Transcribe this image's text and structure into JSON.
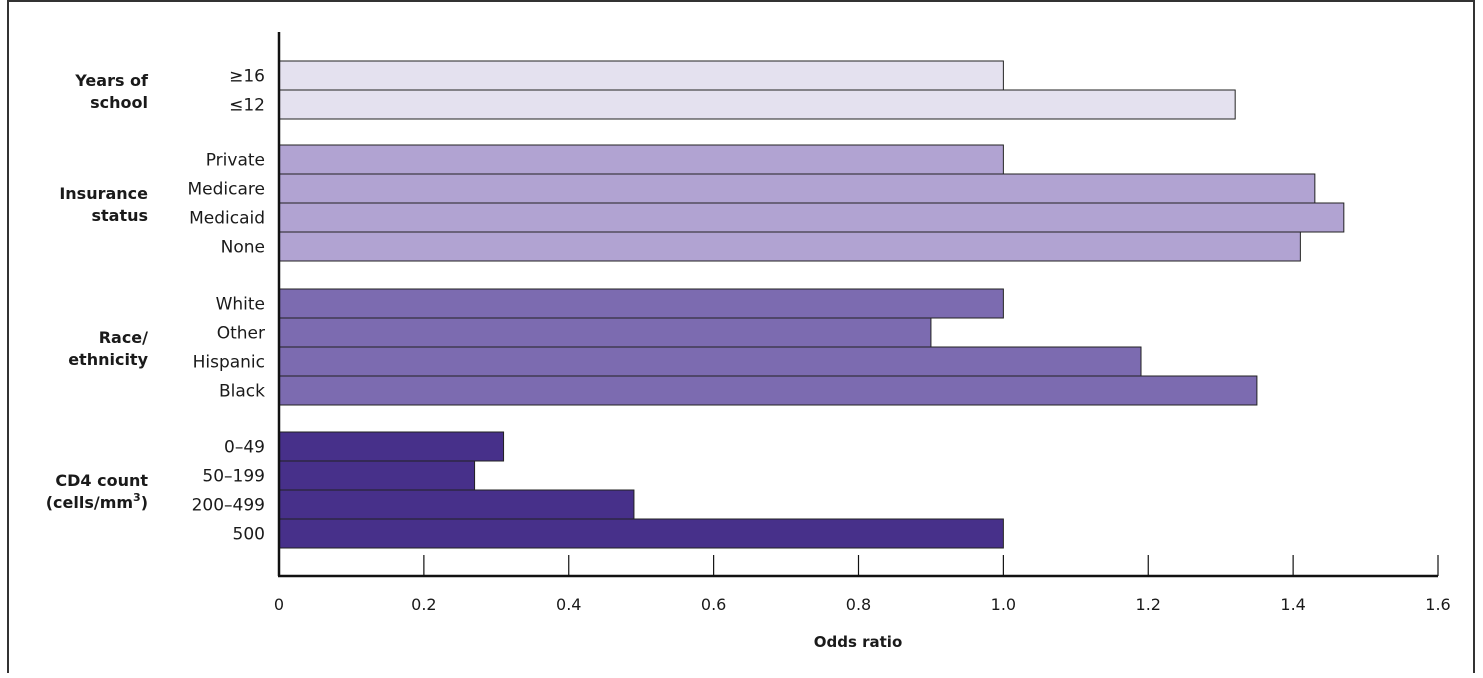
{
  "chart_data": {
    "type": "bar",
    "orientation": "horizontal",
    "title": "",
    "xlabel": "Odds ratio",
    "ylabel": "",
    "xlim": [
      0,
      1.6
    ],
    "x_ticks": [
      "0",
      "0.2",
      "0.4",
      "0.6",
      "0.8",
      "1.0",
      "1.2",
      "1.4",
      "1.6"
    ],
    "grid": false,
    "legend": "none",
    "groups": [
      {
        "label_lines": [
          "Years of",
          "school"
        ],
        "color": "#e4e1ef",
        "bars": [
          {
            "category": "≥16",
            "value": 1.0
          },
          {
            "category": "≤12",
            "value": 1.32
          }
        ]
      },
      {
        "label_lines": [
          "Insurance",
          "status"
        ],
        "color": "#b1a3d2",
        "bars": [
          {
            "category": "Private",
            "value": 1.0
          },
          {
            "category": "Medicare",
            "value": 1.43
          },
          {
            "category": "Medicaid",
            "value": 1.47
          },
          {
            "category": "None",
            "value": 1.41
          }
        ]
      },
      {
        "label_lines": [
          "Race/",
          "ethnicity"
        ],
        "color": "#7c6bb0",
        "bars": [
          {
            "category": "White",
            "value": 1.0
          },
          {
            "category": "Other",
            "value": 0.9
          },
          {
            "category": "Hispanic",
            "value": 1.19
          },
          {
            "category": "Black",
            "value": 1.35
          }
        ]
      },
      {
        "label_lines": [
          "CD4 count",
          "(cells/mm",
          "3",
          ")"
        ],
        "color": "#47308a",
        "bars": [
          {
            "category": "0–49",
            "value": 0.31
          },
          {
            "category": "50–199",
            "value": 0.27
          },
          {
            "category": "200–499",
            "value": 0.49
          },
          {
            "category": "500",
            "value": 1.0
          }
        ]
      }
    ]
  }
}
